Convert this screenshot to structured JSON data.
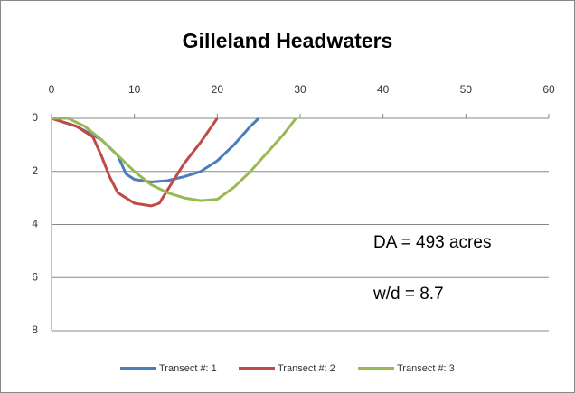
{
  "chart_data": {
    "type": "line",
    "title": "Gilleland Headwaters",
    "series": [
      {
        "name": "Transect #: 1",
        "color": "#4a7ebb",
        "x": [
          0,
          3,
          6,
          8,
          9,
          10,
          12,
          14,
          16,
          18,
          20,
          22,
          24,
          25
        ],
        "values": [
          0,
          0.3,
          0.8,
          1.4,
          2.1,
          2.3,
          2.4,
          2.35,
          2.2,
          2.0,
          1.6,
          1.0,
          0.3,
          0
        ]
      },
      {
        "name": "Transect #: 2",
        "color": "#be4b48",
        "x": [
          0,
          3,
          5,
          6,
          7,
          8,
          10,
          12,
          13,
          14,
          15,
          16,
          18,
          20
        ],
        "values": [
          0,
          0.3,
          0.7,
          1.4,
          2.2,
          2.8,
          3.2,
          3.3,
          3.2,
          2.7,
          2.2,
          1.7,
          0.9,
          0
        ]
      },
      {
        "name": "Transect #: 3",
        "color": "#98b954",
        "x": [
          0,
          2,
          4,
          6,
          8,
          10,
          12,
          14,
          16,
          18,
          20,
          22,
          24,
          26,
          28,
          29.5
        ],
        "values": [
          0,
          0,
          0.3,
          0.8,
          1.4,
          2.0,
          2.5,
          2.8,
          3.0,
          3.1,
          3.05,
          2.6,
          2.0,
          1.3,
          0.6,
          0
        ]
      }
    ],
    "xlim": [
      0,
      60
    ],
    "xticks": [
      0,
      10,
      20,
      30,
      40,
      50,
      60
    ],
    "ylim": [
      0,
      8
    ],
    "yticks": [
      0,
      2,
      4,
      6,
      8
    ],
    "y_inverted": true,
    "grid": true,
    "legend": "bottom",
    "annotations": [
      "DA = 493 acres",
      "w/d = 8.7"
    ]
  }
}
